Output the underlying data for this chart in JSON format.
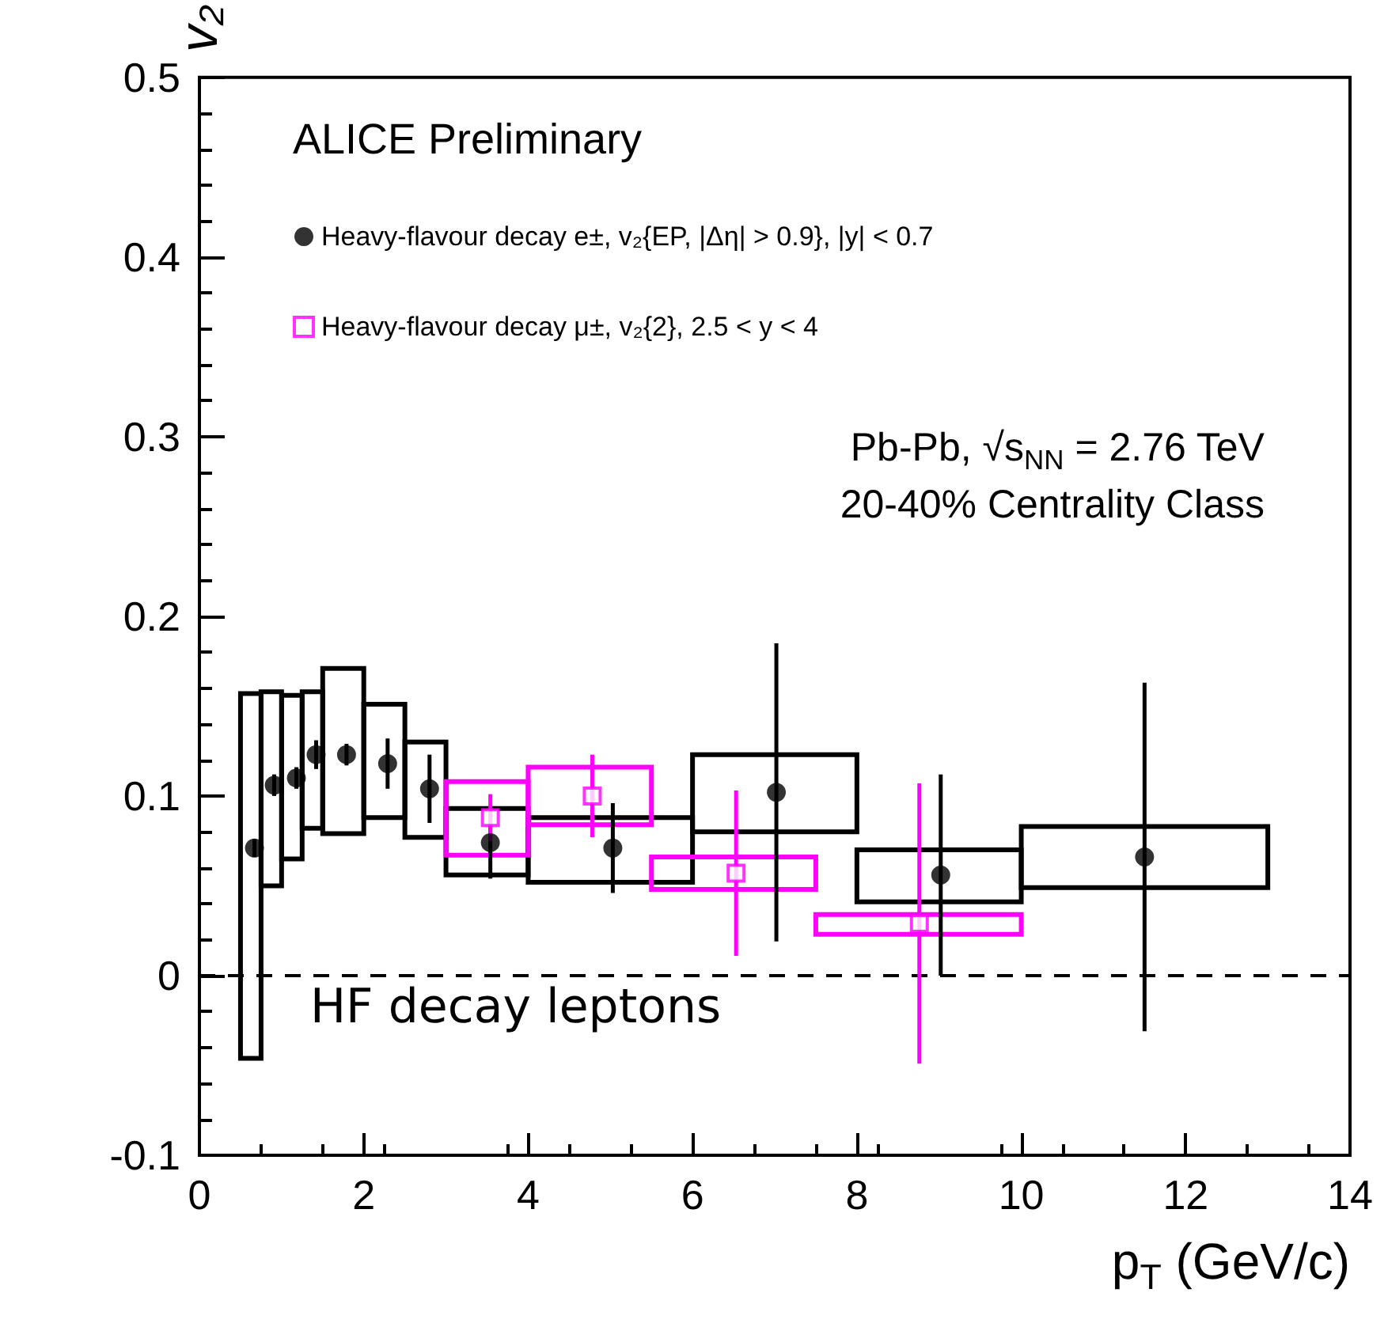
{
  "chart_data": {
    "type": "scatter",
    "xlabel": "p$_{T}$ (GeV/c)",
    "ylabel": "v₂",
    "xlim": [
      0,
      14
    ],
    "xticks": [
      0,
      2,
      4,
      6,
      8,
      10,
      12,
      14
    ],
    "ylim": [
      -0.1,
      0.5
    ],
    "yticks": [
      -0.1,
      0,
      0.1,
      0.2,
      0.3,
      0.4,
      0.5
    ],
    "grid": false,
    "legend": "top left",
    "annotations": [
      "ALICE Preliminary",
      "Pb-Pb, √s$_{NN}$ = 2.76 TeV",
      "20-40% Centrality Class",
      "HF decay leptons"
    ],
    "ref_lines": [
      {
        "axis": "y",
        "value": 0,
        "color": "#000000",
        "line_style": "dashed"
      }
    ],
    "series": [
      {
        "name": "Heavy-flavour decay e±, v₂{EP, |Δη| > 0.9}, |y| < 0.7",
        "color": "#000000",
        "marker": "circle",
        "x": [
          0.67,
          0.91,
          1.18,
          1.42,
          1.79,
          2.29,
          2.8,
          3.54,
          5.03,
          7.02,
          9.02,
          11.5
        ],
        "values": [
          0.071,
          0.106,
          0.11,
          0.123,
          0.123,
          0.118,
          0.104,
          0.074,
          0.071,
          0.102,
          0.056,
          0.066
        ],
        "errors": [
          0.005,
          0.006,
          0.006,
          0.008,
          0.006,
          0.014,
          0.019,
          0.02,
          0.025,
          0.083,
          0.056,
          0.097
        ]
      },
      {
        "type": "histogram",
        "color": "#000000",
        "bins": [
          0.5,
          0.75,
          1,
          1.25,
          1.5,
          2,
          2.5,
          3,
          4,
          6,
          8,
          10,
          13
        ],
        "base": [
          -0.046,
          0.05,
          0.065,
          0.082,
          0.079,
          0.088,
          0.077,
          0.056,
          0.052,
          0.08,
          0.041,
          0.049
        ],
        "values": [
          0.203,
          0.108,
          0.091,
          0.076,
          0.092,
          0.063,
          0.053,
          0.037,
          0.036,
          0.043,
          0.029,
          0.034
        ]
      },
      {
        "name": "Heavy-flavour decay μ±, v₂{2}, 2.5 < y < 4",
        "color": "#ff00ff",
        "marker": "square",
        "x": [
          3.54,
          4.78,
          6.53,
          8.76
        ],
        "values": [
          0.088,
          0.1,
          0.057,
          0.029
        ],
        "errors": [
          0.013,
          0.023,
          0.046,
          0.078
        ]
      },
      {
        "type": "histogram",
        "color": "#ff00ff",
        "bins": [
          3,
          4,
          5.5,
          7.5,
          10
        ],
        "base": [
          0.067,
          0.084,
          0.048,
          0.023
        ],
        "values": [
          0.041,
          0.032,
          0.018,
          0.011
        ]
      }
    ]
  }
}
